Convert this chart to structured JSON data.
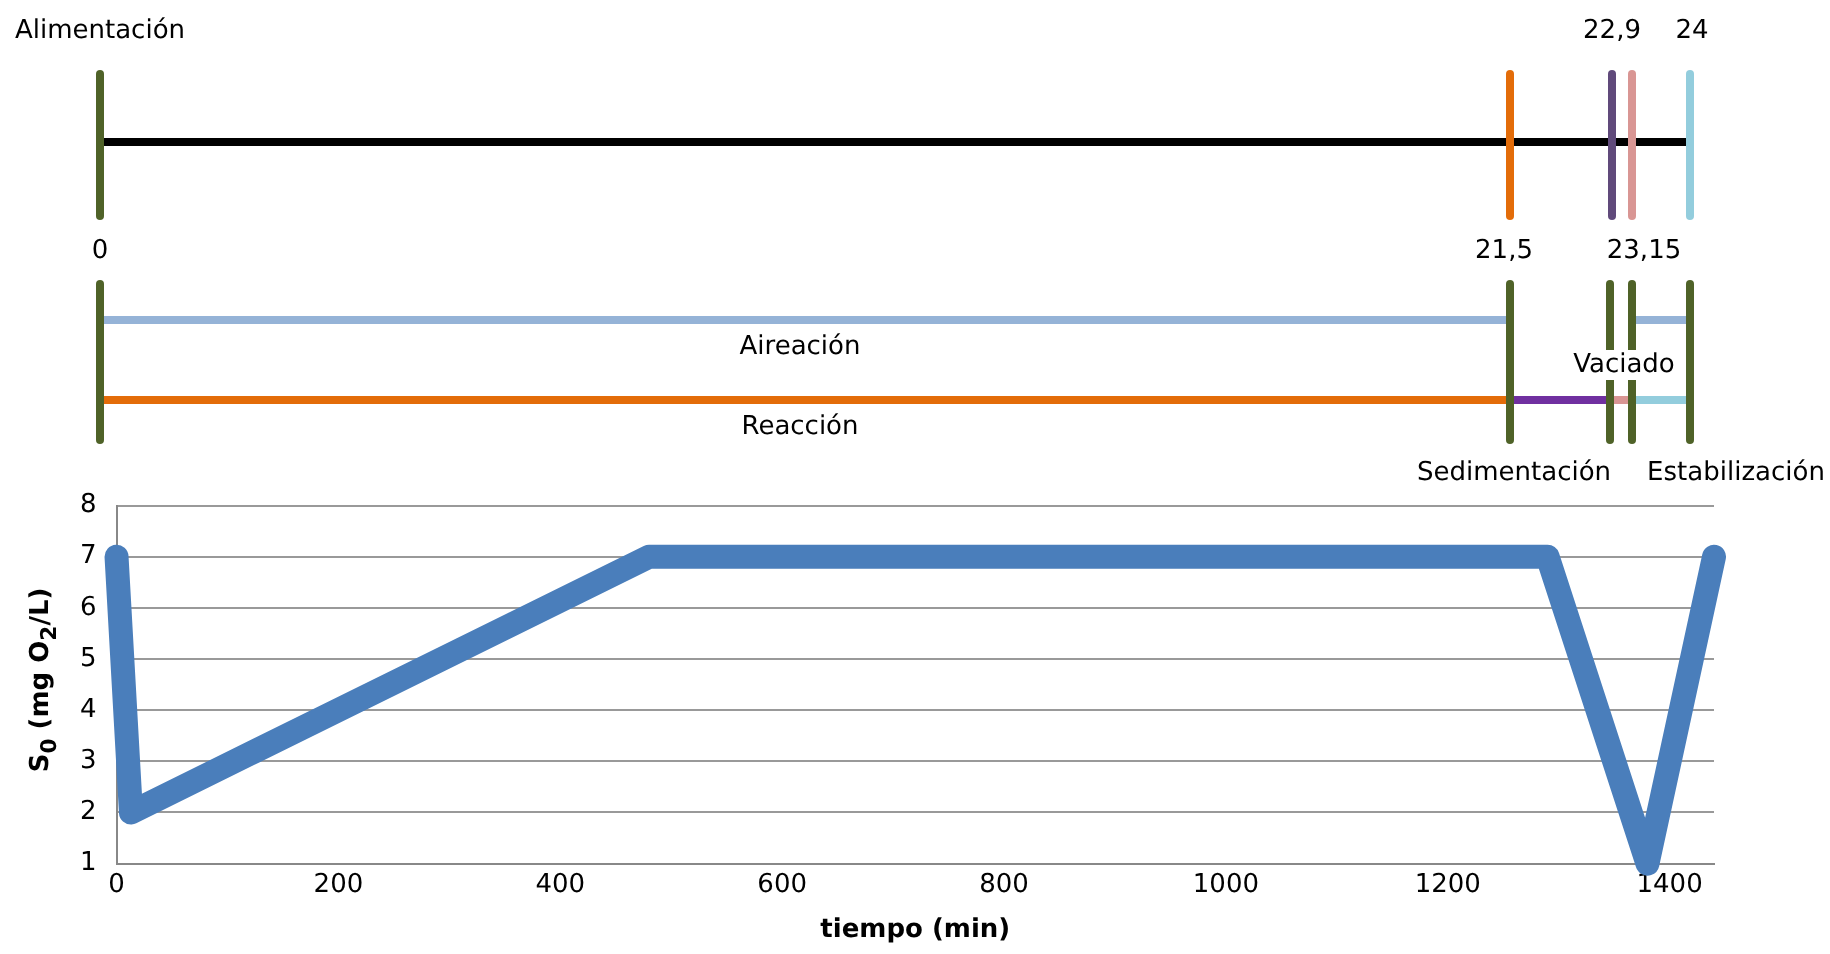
{
  "chart_data": {
    "type": "line",
    "xlabel": "tiempo (min)",
    "ylabel": "S$_{0}$ (mg O$_{2}$/L)",
    "x": [
      0,
      13,
      480,
      1290,
      1380,
      1440
    ],
    "series": [
      {
        "color": "#4a7ebb",
        "values": [
          7,
          2,
          7,
          7,
          1,
          7
        ]
      }
    ],
    "xlim": [
      0,
      1440
    ],
    "xticks": [
      0,
      200,
      400,
      600,
      800,
      1000,
      1200,
      1400
    ],
    "ylim": [
      1,
      8
    ],
    "yticks": [
      1,
      2,
      3,
      4,
      5,
      6,
      7,
      8
    ],
    "grid": "y",
    "marker": "none",
    "line_style": "solid",
    "annotations": [
      "Alimentación",
      "0",
      "21,5",
      "22,9",
      "23,15",
      "24",
      "Aireación",
      "Reacción",
      "Vaciado",
      "Sedimentación",
      "Estabilización"
    ]
  }
}
